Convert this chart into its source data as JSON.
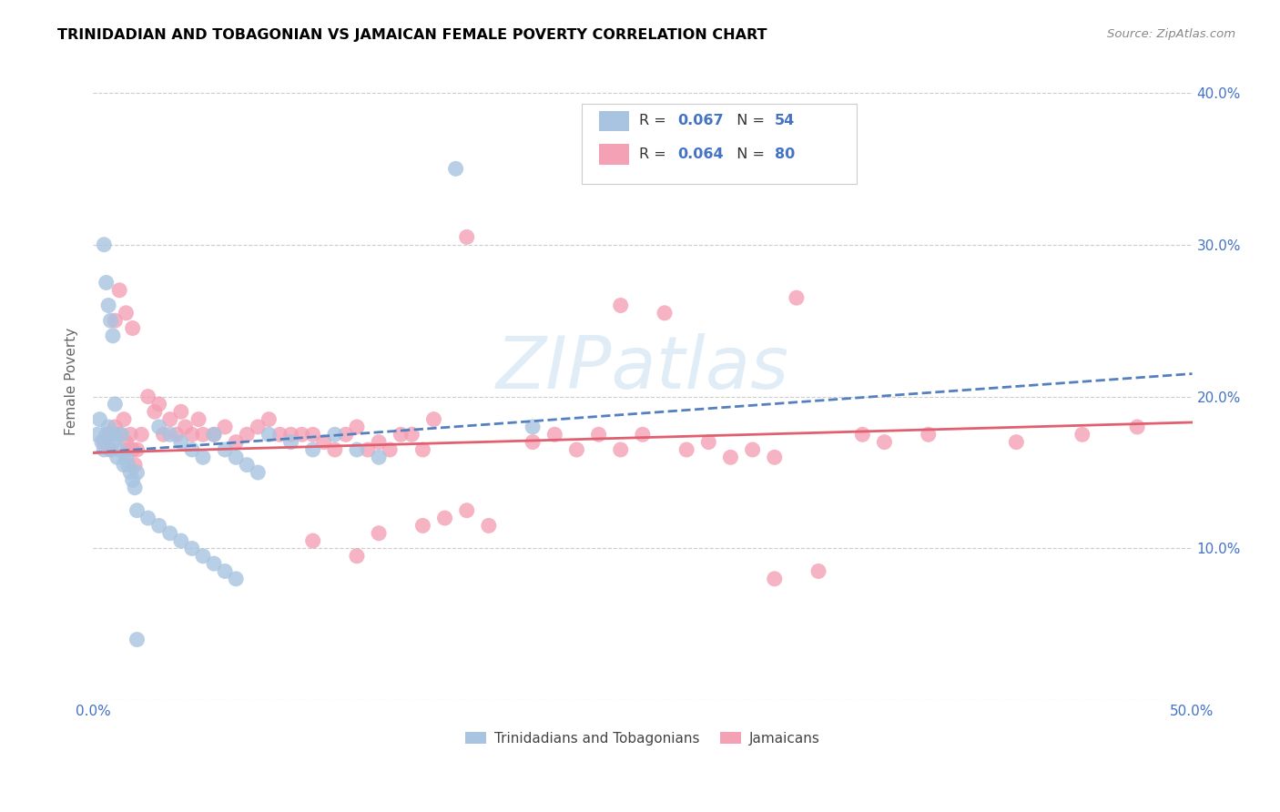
{
  "title": "TRINIDADIAN AND TOBAGONIAN VS JAMAICAN FEMALE POVERTY CORRELATION CHART",
  "source": "Source: ZipAtlas.com",
  "ylabel": "Female Poverty",
  "x_min": 0.0,
  "x_max": 0.5,
  "y_min": 0.0,
  "y_max": 0.42,
  "x_ticks": [
    0.0,
    0.1,
    0.2,
    0.3,
    0.4,
    0.5
  ],
  "x_tick_labels": [
    "0.0%",
    "",
    "",
    "",
    "",
    "50.0%"
  ],
  "y_ticks": [
    0.0,
    0.1,
    0.2,
    0.3,
    0.4
  ],
  "y_tick_labels_right": [
    "",
    "10.0%",
    "20.0%",
    "30.0%",
    "40.0%"
  ],
  "legend_label_blue": "Trinidadians and Tobagonians",
  "legend_label_pink": "Jamaicans",
  "R_blue": "0.067",
  "N_blue": "54",
  "R_pink": "0.064",
  "N_pink": "80",
  "color_blue": "#a8c4e0",
  "color_pink": "#f4a0b5",
  "line_blue_color": "#5580c0",
  "line_pink_color": "#e06070",
  "tick_color": "#4472c4",
  "watermark": "ZIPatlas",
  "watermark_color": "#c8dff0"
}
